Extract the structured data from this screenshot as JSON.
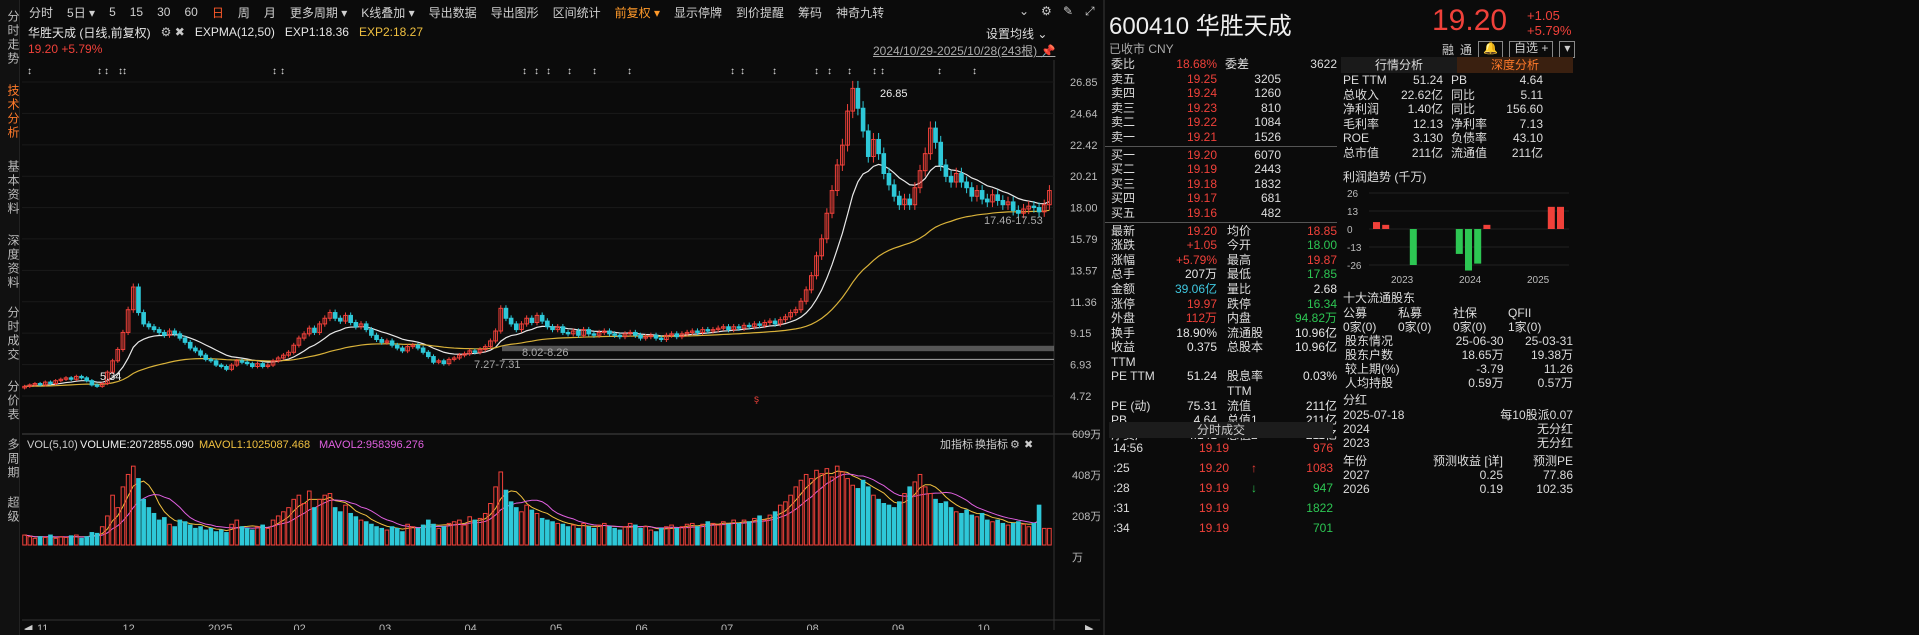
{
  "left_tabs": [
    {
      "label": "分时走势",
      "active": false
    },
    {
      "label": "技术分析",
      "active": true
    },
    {
      "label": "基本资料",
      "active": false
    },
    {
      "label": "深度资料",
      "active": false
    },
    {
      "label": "分时成交",
      "active": false
    },
    {
      "label": "分价表",
      "active": false
    },
    {
      "label": "多周期",
      "active": false
    },
    {
      "label": "超级",
      "active": false
    }
  ],
  "toolbar": [
    {
      "label": "分时"
    },
    {
      "label": "5日 ▾"
    },
    {
      "label": "5"
    },
    {
      "label": "15"
    },
    {
      "label": "30"
    },
    {
      "label": "60"
    },
    {
      "label": "日",
      "active": true
    },
    {
      "label": "周"
    },
    {
      "label": "月"
    },
    {
      "label": "更多周期 ▾"
    },
    {
      "label": "K线叠加 ▾"
    },
    {
      "label": "导出数据"
    },
    {
      "label": "导出图形"
    },
    {
      "label": "区间统计"
    },
    {
      "label": "前复权 ▾",
      "fq": true
    },
    {
      "label": "显示停牌"
    },
    {
      "label": "到价提醒"
    },
    {
      "label": "筹码"
    },
    {
      "label": "神奇九转"
    }
  ],
  "chart_info": {
    "stock_label": "华胜天成 (日线,前复权)",
    "indicator": "EXPMA(12,50)",
    "exp1": "EXP1:18.36",
    "exp2": "EXP2:18.27",
    "price_change": "19.20 +5.79%",
    "set_ma": "设置均线",
    "date_range": "2024/10/29-2025/10/28(243根)"
  },
  "volume_info": {
    "label": "VOL(5,10)",
    "volume": "VOLUME:2072855.090",
    "mavol1": "MAVOL1:1025087.468",
    "mavol2": "MAVOL2:958396.276",
    "add_indicator": "加指标",
    "switch_indicator": "换指标"
  },
  "chart_data": {
    "type": "candlestick",
    "price_axis": [
      "26.85",
      "24.64",
      "22.42",
      "20.21",
      "18.00",
      "15.79",
      "13.57",
      "11.36",
      "9.15",
      "6.93",
      "4.72"
    ],
    "volume_axis": [
      "609万",
      "408万",
      "208万",
      "万"
    ],
    "x_labels": [
      "11",
      "12",
      "2025",
      "02",
      "03",
      "04",
      "05",
      "06",
      "07",
      "08",
      "09",
      "10"
    ],
    "annotations": {
      "high": "26.85",
      "low_left": "5.34",
      "low_mid": "7.27-7.31",
      "band": "8.02-8.26",
      "recent_low": "17.46-17.53"
    },
    "ylim": [
      4.72,
      26.85
    ],
    "closes": [
      5.4,
      5.5,
      5.6,
      5.5,
      5.7,
      5.6,
      5.8,
      5.9,
      6.0,
      5.9,
      6.1,
      6.0,
      5.8,
      5.5,
      5.4,
      5.6,
      6.4,
      7.2,
      8.0,
      9.2,
      10.8,
      12.4,
      10.6,
      9.8,
      9.6,
      9.4,
      9.2,
      9.0,
      9.3,
      9.1,
      8.8,
      8.5,
      8.1,
      7.9,
      7.6,
      7.3,
      7.2,
      6.9,
      6.8,
      6.6,
      6.9,
      7.2,
      7.1,
      7.0,
      6.8,
      7.0,
      6.8,
      6.9,
      7.2,
      7.4,
      7.6,
      7.8,
      8.3,
      8.8,
      9.1,
      9.5,
      9.2,
      9.8,
      10.2,
      10.6,
      10.2,
      10.0,
      10.4,
      9.9,
      9.6,
      9.8,
      9.4,
      9.0,
      8.7,
      8.5,
      8.6,
      8.3,
      8.1,
      7.9,
      8.2,
      8.3,
      8.1,
      7.8,
      7.5,
      7.1,
      7.2,
      7.0,
      7.3,
      7.4,
      7.6,
      7.7,
      7.9,
      7.8,
      8.0,
      8.2,
      8.6,
      9.3,
      10.9,
      10.2,
      9.8,
      9.4,
      9.8,
      10.2,
      9.9,
      10.4,
      10.0,
      9.6,
      9.4,
      9.6,
      9.2,
      9.1,
      9.3,
      9.0,
      9.4,
      9.1,
      9.0,
      9.2,
      9.3,
      9.1,
      9.0,
      8.9,
      9.1,
      9.2,
      9.0,
      8.8,
      8.9,
      9.0,
      8.8,
      8.7,
      9.0,
      9.1,
      8.9,
      9.1,
      9.2,
      9.3,
      9.2,
      9.4,
      9.3,
      9.4,
      9.5,
      9.6,
      9.4,
      9.6,
      9.5,
      9.7,
      9.6,
      9.8,
      9.7,
      9.9,
      10.0,
      9.8,
      10.1,
      10.3,
      10.6,
      10.8,
      11.4,
      12.2,
      13.2,
      14.6,
      15.8,
      17.6,
      19.2,
      21.0,
      22.4,
      24.8,
      26.4,
      25.0,
      23.4,
      21.6,
      22.8,
      21.8,
      20.4,
      19.6,
      18.8,
      18.2,
      18.6,
      18.2,
      19.4,
      20.6,
      21.8,
      23.6,
      22.6,
      21.0,
      20.2,
      19.8,
      20.4,
      19.8,
      19.4,
      18.8,
      19.2,
      18.6,
      18.4,
      18.9,
      18.5,
      18.2,
      18.4,
      17.8,
      17.6,
      17.9,
      18.1,
      18.0,
      17.7,
      18.2,
      19.2
    ],
    "volume_pct": [
      0.12,
      0.1,
      0.08,
      0.1,
      0.09,
      0.12,
      0.08,
      0.1,
      0.09,
      0.11,
      0.12,
      0.08,
      0.1,
      0.15,
      0.14,
      0.22,
      0.35,
      0.6,
      0.45,
      0.7,
      0.85,
      0.95,
      0.8,
      0.55,
      0.45,
      0.38,
      0.3,
      0.33,
      0.25,
      0.22,
      0.3,
      0.28,
      0.24,
      0.2,
      0.22,
      0.18,
      0.2,
      0.16,
      0.18,
      0.15,
      0.25,
      0.3,
      0.22,
      0.2,
      0.18,
      0.22,
      0.24,
      0.2,
      0.3,
      0.35,
      0.4,
      0.45,
      0.55,
      0.6,
      0.5,
      0.65,
      0.45,
      0.55,
      0.6,
      0.62,
      0.45,
      0.4,
      0.48,
      0.38,
      0.34,
      0.3,
      0.28,
      0.25,
      0.22,
      0.2,
      0.18,
      0.22,
      0.2,
      0.16,
      0.25,
      0.22,
      0.2,
      0.24,
      0.3,
      0.25,
      0.2,
      0.22,
      0.26,
      0.28,
      0.3,
      0.24,
      0.34,
      0.3,
      0.32,
      0.38,
      0.5,
      0.7,
      0.88,
      0.66,
      0.52,
      0.45,
      0.4,
      0.48,
      0.42,
      0.38,
      0.32,
      0.3,
      0.28,
      0.26,
      0.25,
      0.22,
      0.24,
      0.2,
      0.26,
      0.22,
      0.2,
      0.24,
      0.26,
      0.22,
      0.2,
      0.18,
      0.22,
      0.26,
      0.24,
      0.2,
      0.22,
      0.18,
      0.16,
      0.2,
      0.22,
      0.24,
      0.2,
      0.22,
      0.25,
      0.26,
      0.22,
      0.25,
      0.28,
      0.26,
      0.24,
      0.28,
      0.25,
      0.3,
      0.26,
      0.3,
      0.28,
      0.32,
      0.35,
      0.3,
      0.36,
      0.4,
      0.48,
      0.52,
      0.6,
      0.7,
      0.78,
      0.85,
      0.8,
      0.9,
      0.86,
      0.92,
      0.82,
      0.95,
      0.88,
      0.8,
      0.72,
      0.68,
      0.78,
      0.7,
      0.6,
      0.55,
      0.5,
      0.48,
      0.45,
      0.52,
      0.62,
      0.7,
      0.76,
      0.85,
      0.7,
      0.62,
      0.55,
      0.5,
      0.52,
      0.45,
      0.4,
      0.38,
      0.42,
      0.36,
      0.34,
      0.38,
      0.3,
      0.28,
      0.3,
      0.26,
      0.24,
      0.26,
      0.28,
      0.25,
      0.22,
      0.26,
      0.48
    ]
  },
  "quote": {
    "code_name": "600410 华胜天成",
    "status": "已收市 CNY",
    "price": "19.20",
    "change": "+1.05",
    "change_pct": "+5.79%",
    "ctrl_rong": "融",
    "ctrl_tong": "通",
    "ctrl_bell": "🔔",
    "ctrl_self": "自选 +",
    "ctrl_menu": "▾",
    "order_ratio": {
      "label": "委比",
      "value": "18.68%",
      "label2": "委差",
      "value2": "3622"
    },
    "asks": [
      {
        "label": "卖五",
        "price": "19.25",
        "vol": "3205"
      },
      {
        "label": "卖四",
        "price": "19.24",
        "vol": "1260"
      },
      {
        "label": "卖三",
        "price": "19.23",
        "vol": "810"
      },
      {
        "label": "卖二",
        "price": "19.22",
        "vol": "1084"
      },
      {
        "label": "卖一",
        "price": "19.21",
        "vol": "1526"
      }
    ],
    "bids": [
      {
        "label": "买一",
        "price": "19.20",
        "vol": "6070"
      },
      {
        "label": "买二",
        "price": "19.19",
        "vol": "2443"
      },
      {
        "label": "买三",
        "price": "19.18",
        "vol": "1832"
      },
      {
        "label": "买四",
        "price": "19.17",
        "vol": "681"
      },
      {
        "label": "买五",
        "price": "19.16",
        "vol": "482"
      }
    ],
    "stats": [
      [
        "最新",
        "19.20",
        "均价",
        "18.85"
      ],
      [
        "涨跌",
        "+1.05",
        "今开",
        "18.00"
      ],
      [
        "涨幅",
        "+5.79%",
        "最高",
        "19.87"
      ],
      [
        "总手",
        "207万",
        "最低",
        "17.85"
      ],
      [
        "金额",
        "39.06亿",
        "量比",
        "2.68"
      ],
      [
        "涨停",
        "19.97",
        "跌停",
        "16.34"
      ],
      [
        "外盘",
        "112万",
        "内盘",
        "94.82万"
      ],
      [
        "换手",
        "18.90%",
        "流通股",
        "10.96亿"
      ],
      [
        "收益TTM",
        "0.375",
        "总股本",
        "10.96亿"
      ],
      [
        "PE TTM",
        "51.24",
        "股息率TTM",
        "0.03%"
      ],
      [
        "PE (动)",
        "75.31",
        "流值",
        "211亿"
      ],
      [
        "PB",
        "4.64",
        "总值1",
        "211亿"
      ],
      [
        "净资产",
        "4.141",
        "总值2",
        "211亿"
      ]
    ]
  },
  "ticks": {
    "header": "分时成交",
    "rows": [
      {
        "time": "14:56",
        "price": "19.19",
        "arrow": "",
        "vol": "976",
        "dir": "up"
      },
      {
        "time": ":25",
        "price": "19.20",
        "arrow": "↑",
        "vol": "1083",
        "dir": "up"
      },
      {
        "time": ":28",
        "price": "19.19",
        "arrow": "↓",
        "vol": "947",
        "dir": "down"
      },
      {
        "time": ":31",
        "price": "19.19",
        "arrow": "",
        "vol": "1822",
        "dir": "down"
      },
      {
        "time": ":34",
        "price": "19.19",
        "arrow": "",
        "vol": "701",
        "dir": "down"
      }
    ]
  },
  "fundamentals": {
    "tab1": "行情分析",
    "tab2": "深度分析",
    "grid": [
      [
        "PE TTM",
        "51.24",
        "PB",
        "4.64"
      ],
      [
        "总收入",
        "22.62亿",
        "同比",
        "5.11"
      ],
      [
        "净利润",
        "1.40亿",
        "同比",
        "156.60"
      ],
      [
        "毛利率",
        "12.13",
        "净利率",
        "7.13"
      ],
      [
        "ROE",
        "3.130",
        "负债率",
        "43.10"
      ],
      [
        "总市值",
        "211亿",
        "流通值",
        "211亿"
      ]
    ],
    "profit_title": "利润趋势 (千万)",
    "profit_axis": [
      "26",
      "13",
      "0",
      "-13",
      "-26"
    ],
    "profit_years": [
      "2023",
      "2024",
      "2025"
    ],
    "profit_bars": [
      5,
      3,
      0,
      0,
      -26,
      0,
      0,
      0,
      0,
      -18,
      -30,
      -25,
      3,
      0,
      0,
      0,
      0,
      0,
      0,
      16,
      16
    ],
    "holders_title": "十大流通股东",
    "holders_head": [
      "公募",
      "私募",
      "社保",
      "QFII"
    ],
    "holders_vals": [
      "0家(0)",
      "0家(0)",
      "0家(0)",
      "1家(0)"
    ],
    "holder_rows": [
      [
        "股东情况",
        "25-06-30",
        "25-03-31"
      ],
      [
        "股东户数",
        "18.65万",
        "19.38万"
      ],
      [
        "较上期(%)",
        "-3.79",
        "11.26"
      ],
      [
        "人均持股",
        "0.59万",
        "0.57万"
      ]
    ],
    "dividend_title": "分红",
    "dividend_rows": [
      [
        "2025-07-18",
        "每10股派0.07"
      ],
      [
        "2024",
        "无分红"
      ],
      [
        "2023",
        "无分红"
      ]
    ],
    "forecast_head": [
      "年份",
      "预测收益 [详]",
      "预测PE"
    ],
    "forecast_rows": [
      [
        "2027",
        "0.25",
        "77.86"
      ],
      [
        "2026",
        "0.19",
        "102.35"
      ]
    ]
  }
}
